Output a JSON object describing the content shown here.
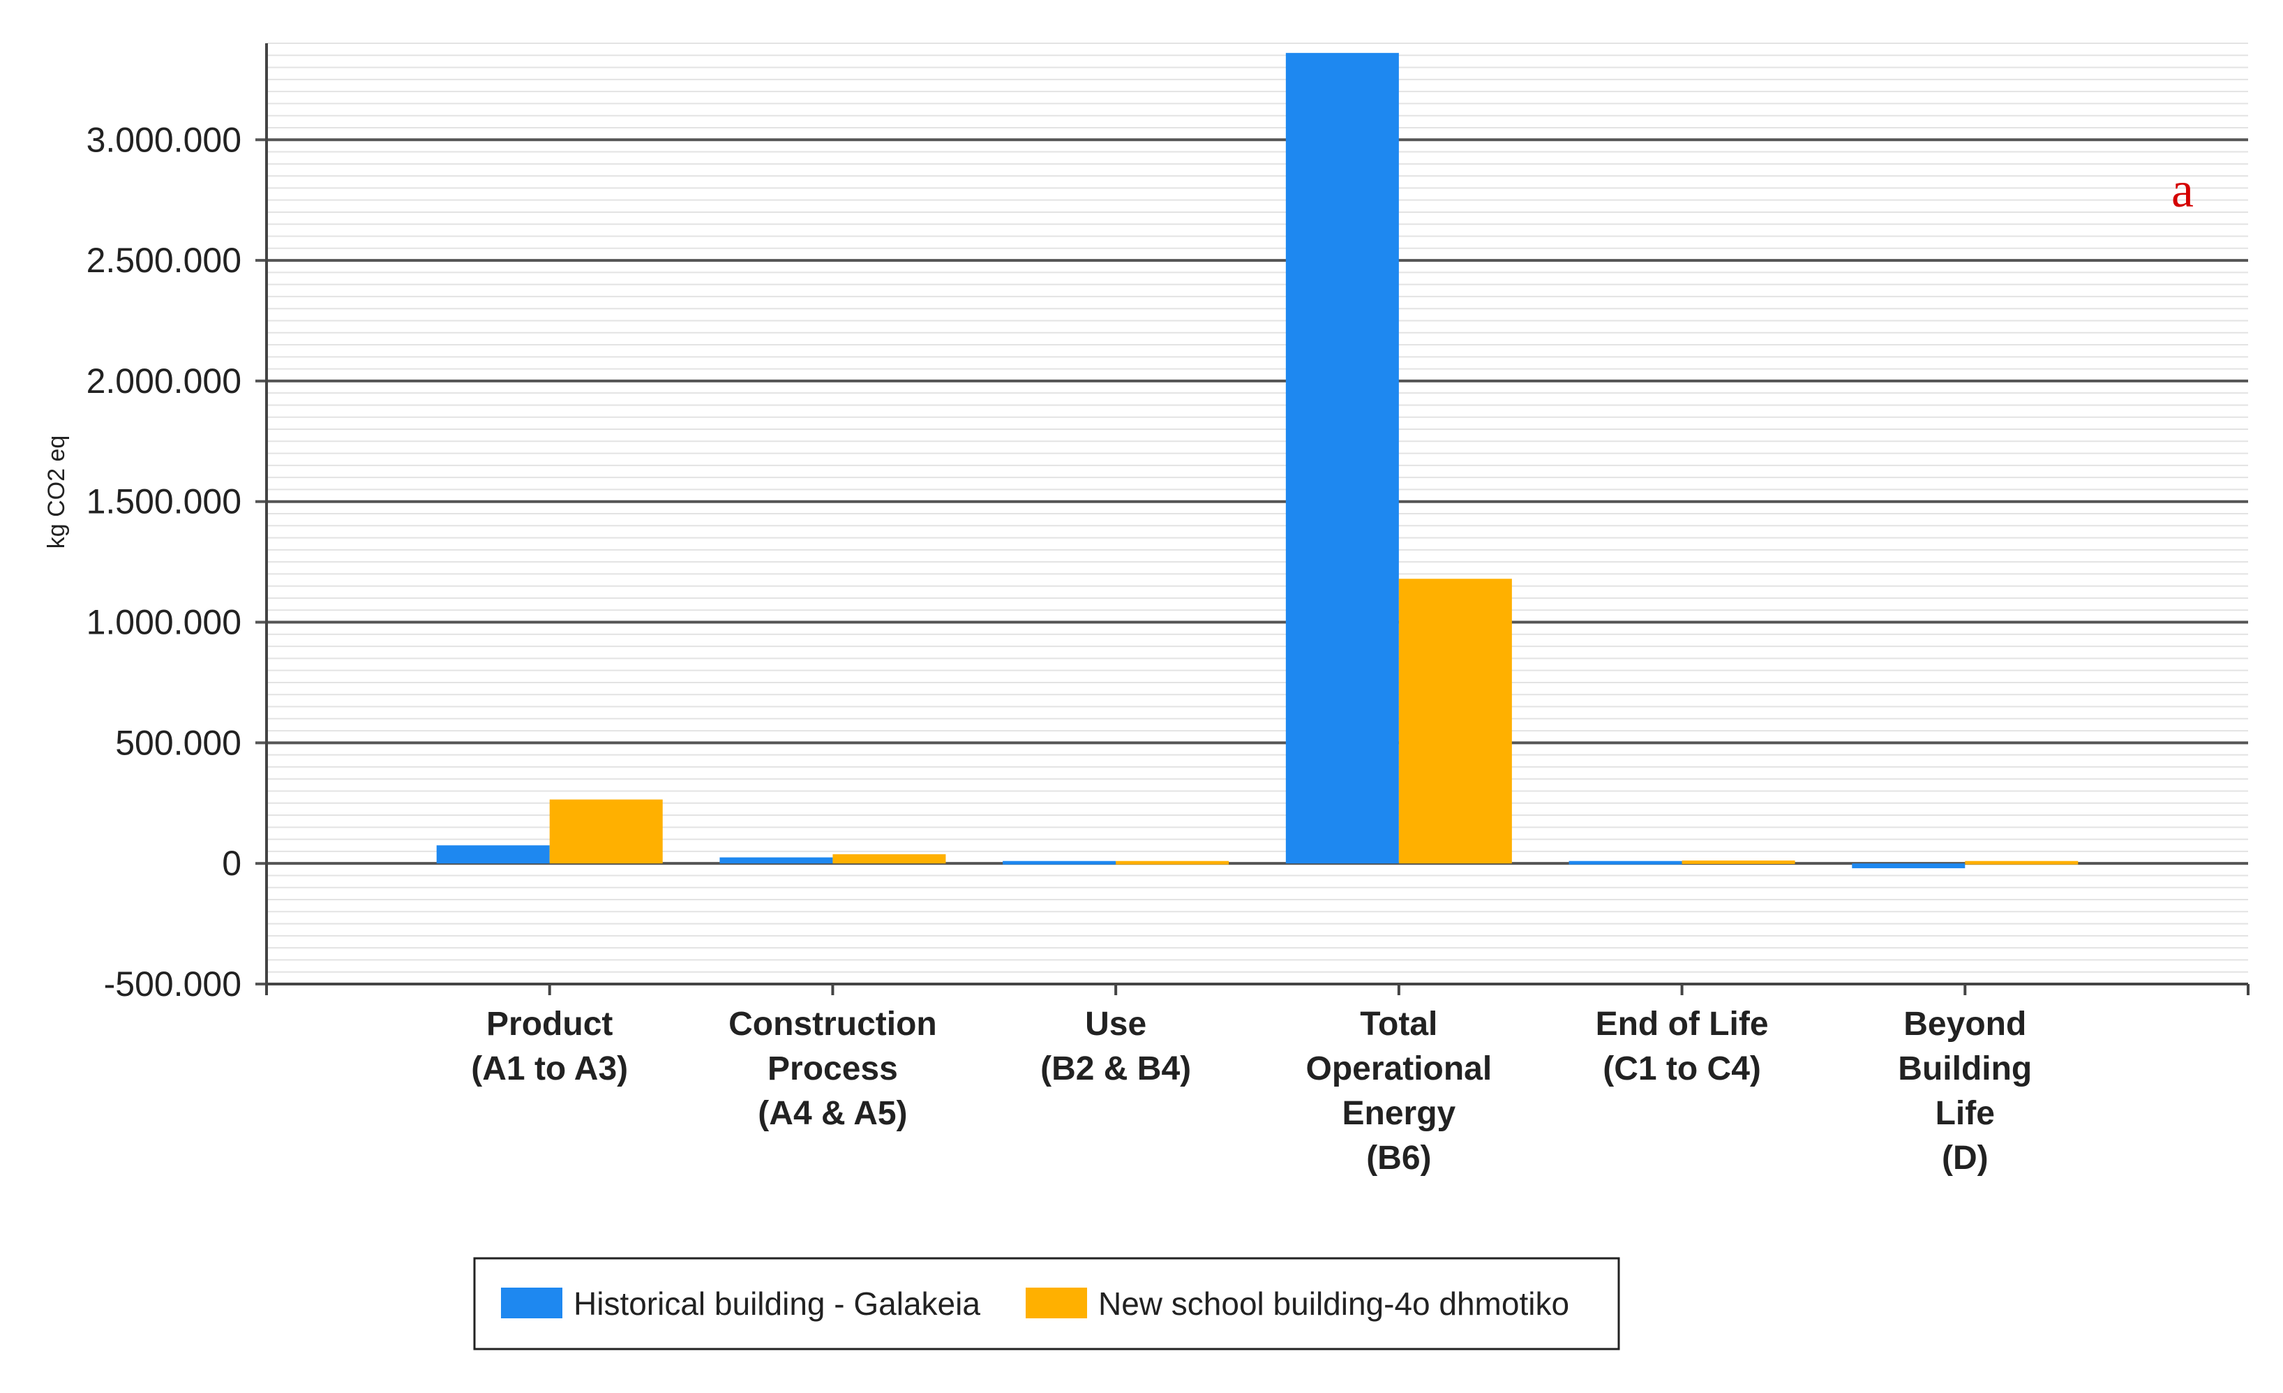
{
  "chart_data": {
    "type": "bar",
    "title": "",
    "panel_label": "a",
    "xlabel": "",
    "ylabel": "kg CO2 eq",
    "ylim": [
      -500000,
      3400000
    ],
    "yticks": [
      -500000,
      0,
      500000,
      1000000,
      1500000,
      2000000,
      2500000,
      3000000
    ],
    "ytick_labels": [
      "-500.000",
      "0",
      "500.000",
      "1.000.000",
      "1.500.000",
      "2.000.000",
      "2.500.000",
      "3.000.000"
    ],
    "grid": true,
    "legend_position": "bottom",
    "categories": [
      [
        "Product",
        "(A1 to A3)"
      ],
      [
        "Construction",
        "Process",
        "(A4 & A5)"
      ],
      [
        "Use",
        "(B2 & B4)"
      ],
      [
        "Total",
        "Operational",
        "Energy",
        "(B6)"
      ],
      [
        "End of Life",
        "(C1 to C4)"
      ],
      [
        "Beyond",
        "Building",
        "Life",
        "(D)"
      ]
    ],
    "series": [
      {
        "name": "Historical building - Galakeia",
        "color": "#1e88f0",
        "values": [
          75000,
          25000,
          10000,
          3360000,
          10000,
          -20000
        ]
      },
      {
        "name": "New school building-4o dhmotiko",
        "color": "#ffb000",
        "values": [
          265000,
          38000,
          10000,
          1180000,
          12000,
          10000
        ]
      }
    ]
  }
}
